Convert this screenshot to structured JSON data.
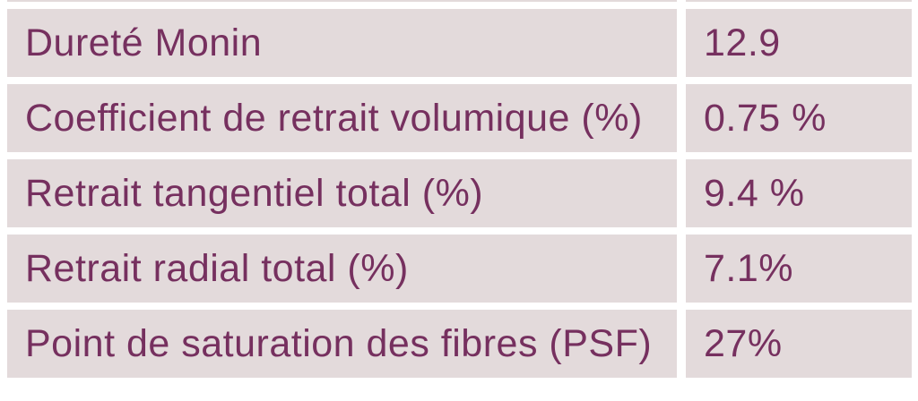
{
  "chart_data": {
    "type": "table",
    "rows": [
      {
        "label": "Dureté Monin",
        "value": "12.9"
      },
      {
        "label": "Coefficient de retrait volumique (%)",
        "value": "0.75 %"
      },
      {
        "label": "Retrait tangentiel total (%)",
        "value": "9.4 %"
      },
      {
        "label": "Retrait radial total (%)",
        "value": "7.1%"
      },
      {
        "label": "Point de saturation des fibres (PSF)",
        "value": "27%"
      }
    ]
  },
  "colors": {
    "cell_bg": "#e3dadb",
    "text": "#76305f",
    "background": "#ffffff"
  }
}
